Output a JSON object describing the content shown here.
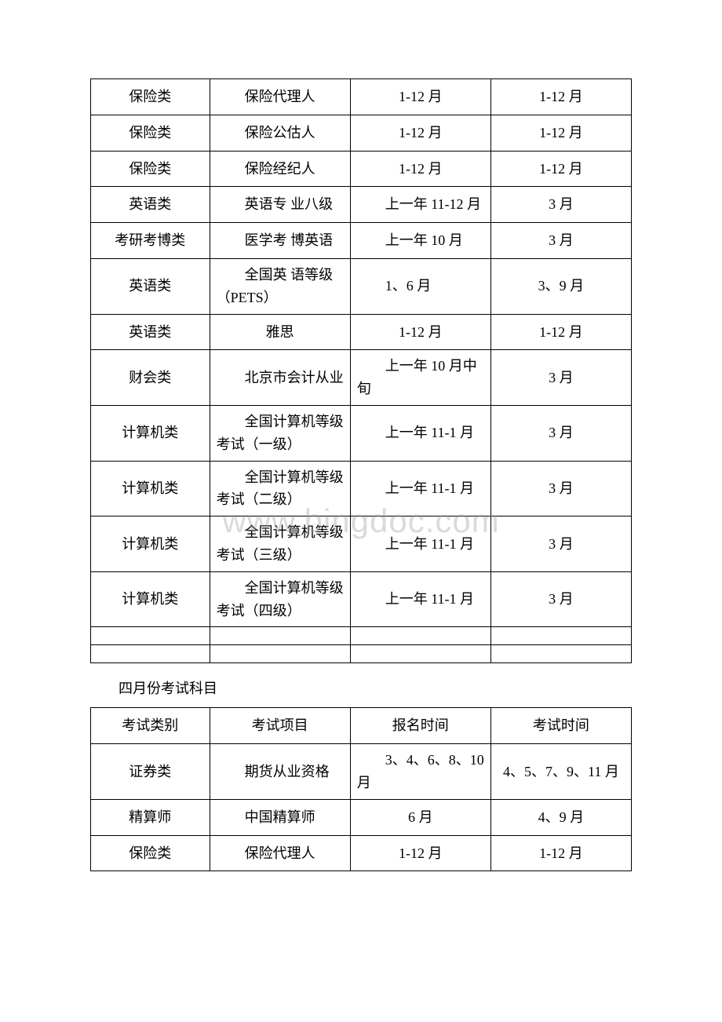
{
  "watermark": "www.bingdoc.com",
  "table1": {
    "rows": [
      {
        "c1": "保险类",
        "c2": "保险代理人",
        "c3": "1-12 月",
        "c4": "1-12 月",
        "style": "center"
      },
      {
        "c1": "保险类",
        "c2": "保险公估人",
        "c3": "1-12 月",
        "c4": "1-12 月",
        "style": "center"
      },
      {
        "c1": "保险类",
        "c2": "保险经纪人",
        "c3": "1-12 月",
        "c4": "1-12 月",
        "style": "center"
      },
      {
        "c1": "英语类",
        "c2": "英语专 业八级",
        "c3": "上一年 11-12 月",
        "c4": "3 月",
        "style": "wrap"
      },
      {
        "c1": "考研考博类",
        "c2": "医学考 博英语",
        "c3": "上一年 10 月",
        "c4": "3 月",
        "style": "wrap"
      },
      {
        "c1": "英语类",
        "c2": "全国英 语等级（PETS）",
        "c3": "1、6 月",
        "c4": "3、9 月",
        "style": "wrap"
      },
      {
        "c1": "英语类",
        "c2": "雅思",
        "c3": "1-12 月",
        "c4": "1-12 月",
        "style": "center"
      },
      {
        "c1": "财会类",
        "c2": "北京市会计从业",
        "c3": "上一年 10 月中旬",
        "c4": "3 月",
        "style": "wrap"
      },
      {
        "c1": "计算机类",
        "c2": "全国计算机等级考试（一级）",
        "c3": "上一年 11-1 月",
        "c4": "3 月",
        "style": "wrap"
      },
      {
        "c1": "计算机类",
        "c2": "全国计算机等级考试（二级）",
        "c3": "上一年 11-1 月",
        "c4": "3 月",
        "style": "wrap"
      },
      {
        "c1": "计算机类",
        "c2": "全国计算机等级考试（三级）",
        "c3": "上一年 11-1 月",
        "c4": "3 月",
        "style": "wrap"
      },
      {
        "c1": "计算机类",
        "c2": "全国计算机等级考试（四级）",
        "c3": "上一年 11-1 月",
        "c4": "3 月",
        "style": "wrap"
      }
    ]
  },
  "section_title": "四月份考试科目",
  "table2": {
    "header": {
      "c1": "考试类别",
      "c2": "考试项目",
      "c3": "报名时间",
      "c4": "考试时间"
    },
    "rows": [
      {
        "c1": "证券类",
        "c2": "期货从业资格",
        "c3": "3、4、6、8、10 月",
        "c4": "4、5、7、9、11 月",
        "style": "wrap"
      },
      {
        "c1": "精算师",
        "c2": "中国精算师",
        "c3": "6 月",
        "c4": "4、9 月",
        "style": "center"
      },
      {
        "c1": "保险类",
        "c2": "保险代理人",
        "c3": "1-12 月",
        "c4": "1-12 月",
        "style": "center"
      }
    ]
  }
}
